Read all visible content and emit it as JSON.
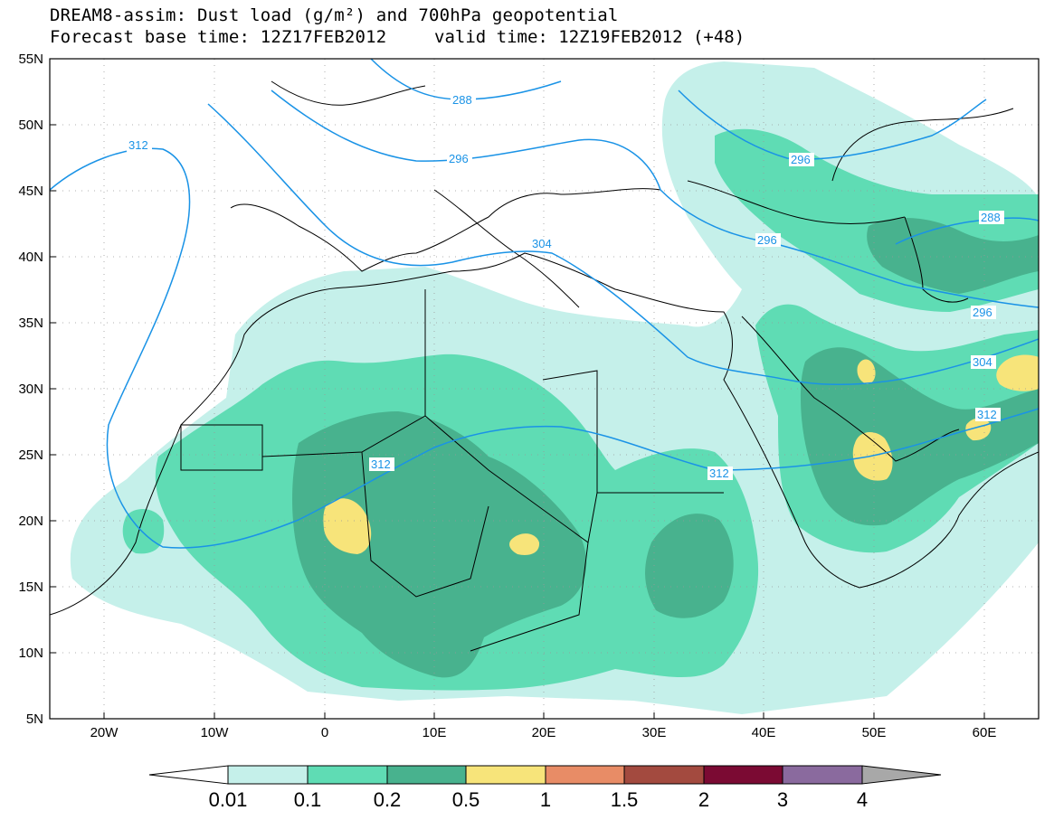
{
  "header": {
    "title_line1": "DREAM8-assim: Dust load (g/m²) and 700hPa geopotential",
    "base_time": "Forecast base time: 12Z17FEB2012",
    "valid_time": "valid time: 12Z19FEB2012 (+48)"
  },
  "axes": {
    "lon_labels": [
      "20W",
      "10W",
      "0",
      "10E",
      "20E",
      "30E",
      "40E",
      "50E",
      "60E"
    ],
    "lat_labels": [
      "55N",
      "50N",
      "45N",
      "40N",
      "35N",
      "30N",
      "25N",
      "20N",
      "15N",
      "10N",
      "5N"
    ]
  },
  "contour_labels": [
    "288",
    "296",
    "312",
    "304",
    "296",
    "296",
    "288",
    "296",
    "304",
    "312",
    "312",
    "312"
  ],
  "colorbar": {
    "levels": [
      "0.01",
      "0.1",
      "0.2",
      "0.5",
      "1",
      "1.5",
      "2",
      "3",
      "4"
    ],
    "colors": [
      "#ffffff",
      "#c5f0ea",
      "#5fdcb4",
      "#48b28e",
      "#f7e47a",
      "#e88c66",
      "#a34a3f",
      "#7b0a33",
      "#8a6a9e",
      "#a8a8a8"
    ]
  },
  "colors": {
    "contour": "#1a93e6",
    "dust_lt": "#c5f0ea",
    "dust_md": "#5fdcb4",
    "dust_dk": "#48b28e",
    "dust_yl": "#f7e47a"
  }
}
